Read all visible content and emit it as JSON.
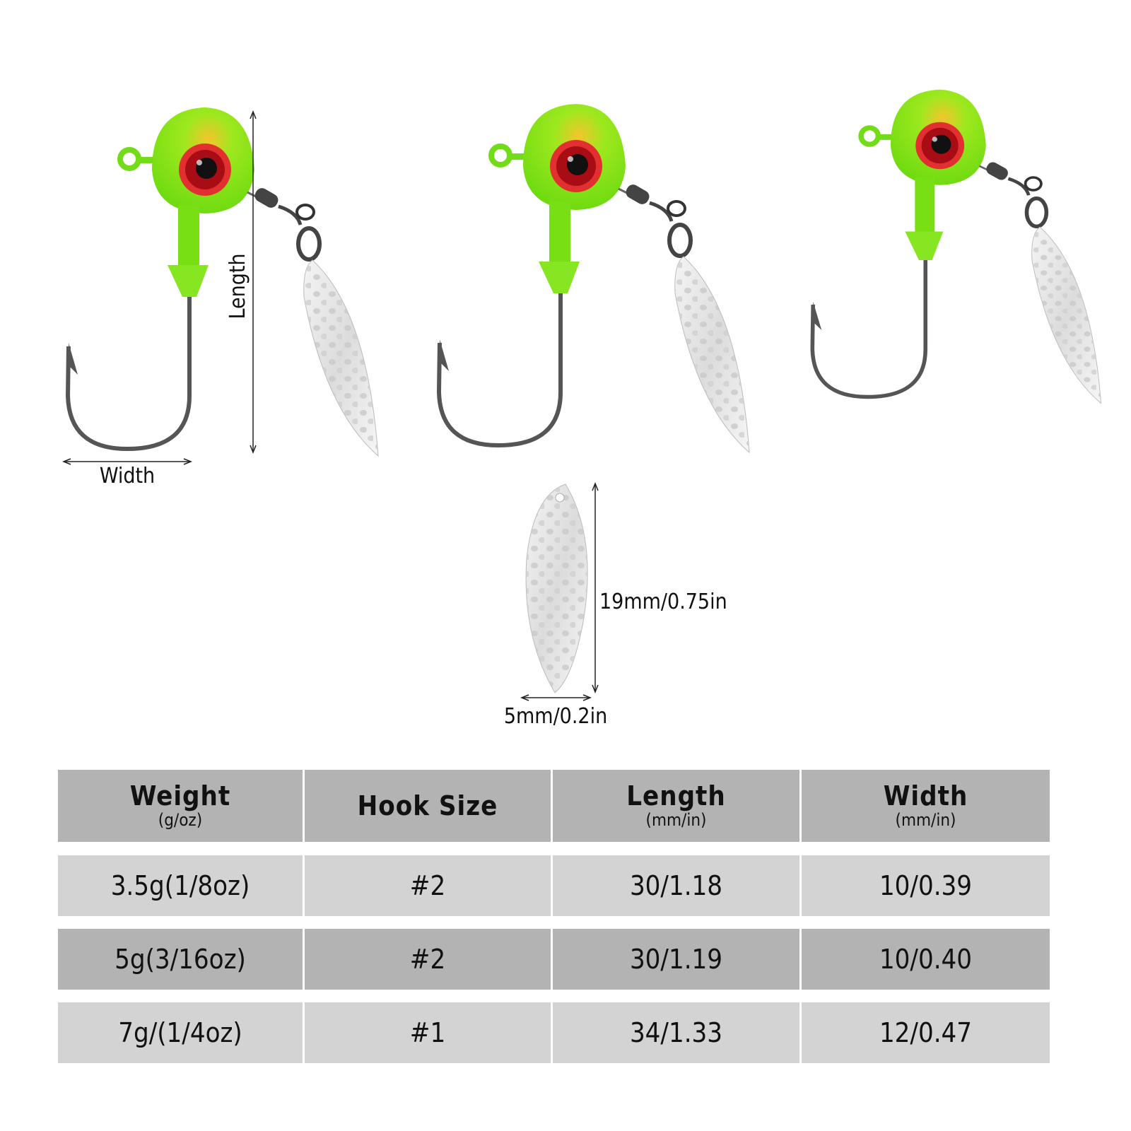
{
  "diagram": {
    "length_label": "Length",
    "width_label": "Width",
    "blade_length_label": "19mm/0.75in",
    "blade_width_label": "5mm/0.2in"
  },
  "colors": {
    "head": "#7fe81e",
    "head_top": "#f2c52a",
    "eye": "#c0101a",
    "table_header": "#b3b3b3",
    "table_light": "#d3d3d3",
    "table_dark": "#b3b3b3"
  },
  "table": {
    "headers": [
      {
        "main": "Weight",
        "unit": "(g/oz)"
      },
      {
        "main": "Hook Size",
        "unit": ""
      },
      {
        "main": "Length",
        "unit": "(mm/in)"
      },
      {
        "main": "Width",
        "unit": "(mm/in)"
      }
    ],
    "rows": [
      [
        "3.5g(1/8oz)",
        "#2",
        "30/1.18",
        "10/0.39"
      ],
      [
        "5g(3/16oz)",
        "#2",
        "30/1.19",
        "10/0.40"
      ],
      [
        "7g/(1/4oz)",
        "#1",
        "34/1.33",
        "12/0.47"
      ]
    ]
  }
}
